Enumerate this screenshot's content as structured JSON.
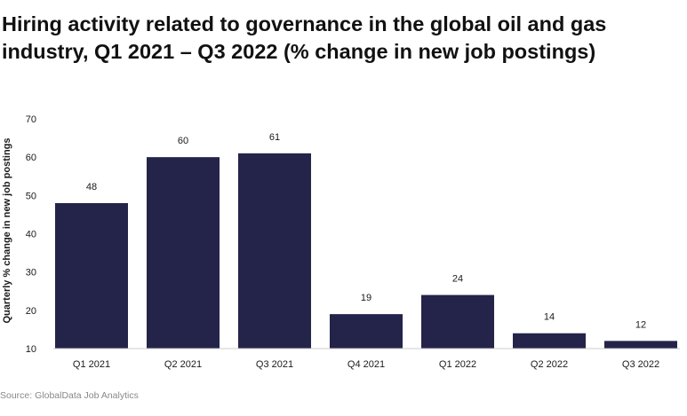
{
  "chart_data": {
    "type": "bar",
    "title": "Hiring activity related to governance in the global oil and gas industry, Q1 2021 – Q3 2022 (% change in new job postings)",
    "xlabel": "",
    "ylabel": "Quarterly % change in new job postings",
    "categories": [
      "Q1 2021",
      "Q2 2021",
      "Q3 2021",
      "Q4 2021",
      "Q1 2022",
      "Q2 2022",
      "Q3 2022"
    ],
    "values": [
      48,
      60,
      61,
      19,
      24,
      14,
      12
    ],
    "ylim": [
      10,
      70
    ],
    "yticks": [
      10,
      20,
      30,
      40,
      50,
      60,
      70
    ],
    "grid": false,
    "legend": "none",
    "bar_color": "#24234a"
  },
  "source": "Source: GlobalData Job Analytics"
}
